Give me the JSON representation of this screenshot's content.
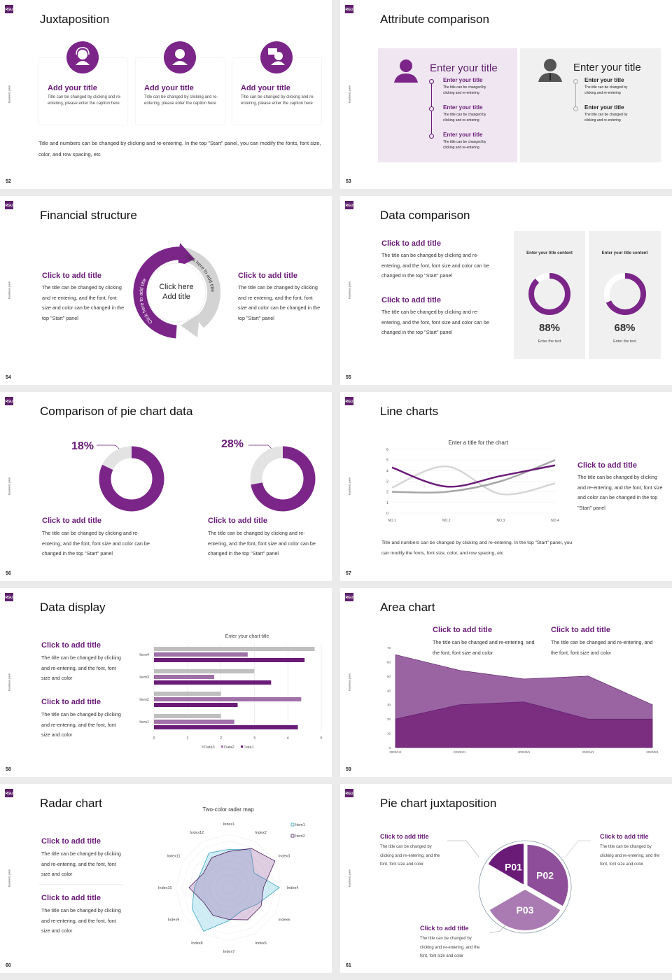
{
  "logo": "RGU",
  "side_label": "Business plan",
  "colors": {
    "purple": "#7b2589",
    "dark_purple": "#5e1f6b",
    "light_purple_bg": "#efe6f1",
    "gray_bg": "#f0f0f0",
    "light_gray": "#e3e3e3"
  },
  "slides": [
    {
      "page": "52",
      "title": "Juxtaposition",
      "cards": [
        {
          "icon": "headset-person-icon",
          "title": "Add your title",
          "text": "Title can be changed by clicking and re-entering, please enter the caption here"
        },
        {
          "icon": "person-icon",
          "title": "Add your title",
          "text": "Title can be changed by clicking and re-entering, please enter the caption here"
        },
        {
          "icon": "person-speech-icon",
          "title": "Add your title",
          "text": "Title can be changed by clicking and re-entering, please enter the caption here"
        }
      ],
      "footer": "Title and numbers can be changed by clicking and re-entering. In the top \"Start\" panel, you can modify the fonts, font size, color, and row spacing, etc"
    },
    {
      "page": "53",
      "title": "Attribute comparison",
      "panels": [
        {
          "heading": "Enter your title",
          "items": [
            {
              "title": "Enter your title",
              "text": "The title can be changed by clicking and re-entering"
            },
            {
              "title": "Enter your title",
              "text": "The title can be changed by clicking and re-entering"
            },
            {
              "title": "Enter your title",
              "text": "The title can be changed by clicking and re-entering"
            }
          ]
        },
        {
          "heading": "Enter your title",
          "items": [
            {
              "title": "Enter your title",
              "text": "The title can be changed by clicking and re-entering"
            },
            {
              "title": "Enter your title",
              "text": "The title can be changed by clicking and re-entering"
            }
          ]
        }
      ]
    },
    {
      "page": "54",
      "title": "Financial structure",
      "left": {
        "title": "Click to add title",
        "text": "The title can be changed by clicking and re-entering, and the font, font size and color can be changed in the top \"Start\" panel"
      },
      "right": {
        "title": "Click to add title",
        "text": "The title can be changed by clicking and re-entering, and the font, font size and color can be changed in the top \"Start\" panel"
      },
      "center": [
        "Click here",
        "Add title"
      ],
      "arc_left": "Click here to add title",
      "arc_right": "Click here to add title"
    },
    {
      "page": "55",
      "title": "Data comparison",
      "blocks": [
        {
          "title": "Click to add title",
          "text": "The title can be changed by clicking and re-entering, and the font, font size and color can be changed in the top \"Start\" panel"
        },
        {
          "title": "Click to add title",
          "text": "The title can be changed by clicking and re-entering, and the font, font size and color can be changed in the top \"Start\" panel"
        }
      ],
      "cards": [
        {
          "heading": "Enter your title content",
          "value": "88%",
          "caption": "Enter the text"
        },
        {
          "heading": "Enter your title content",
          "value": "68%",
          "caption": "Enter the text"
        }
      ]
    },
    {
      "page": "56",
      "title": "Comparison of pie chart data",
      "blocks": [
        {
          "label": "18%",
          "title": "Click to add title",
          "text": "The title can be changed by clicking and re-entering, and the font, font size and color can be changed in the top \"Start\" panel"
        },
        {
          "label": "28%",
          "title": "Click to add title",
          "text": "The title can be changed by clicking and re-entering, and the font, font size and color can be changed in the top \"Start\" panel"
        }
      ]
    },
    {
      "page": "57",
      "title": "Line charts",
      "right": {
        "title": "Click to add title",
        "text": "The title can be changed by clicking and re-entering, and the font, font size and color can be changed in the top \"Start\" panel"
      },
      "footer": "Title and numbers can be changed by clicking and re-entering. In the top \"Start\" panel, you can modify the fonts, font size, color, and row spacing, etc"
    },
    {
      "page": "58",
      "title": "Data display",
      "blocks": [
        {
          "title": "Click to add title",
          "text": "The title can be changed by clicking and re-entering, and the font, font size and color"
        },
        {
          "title": "Click to add title",
          "text": "The title can be changed by clicking and re-entering, and the font, font size and color"
        }
      ]
    },
    {
      "page": "59",
      "title": "Area chart",
      "blocks": [
        {
          "title": "Click to add title",
          "text": "The title can be changed and re-entering, and the font, font size and color"
        },
        {
          "title": "Click to add title",
          "text": "The title can be changed and re-entering, and the font, font size and color"
        }
      ]
    },
    {
      "page": "60",
      "title": "Radar chart",
      "blocks": [
        {
          "title": "Click to add title",
          "text": "The title can be changed by clicking and re-entering, and the font, font size and color"
        },
        {
          "title": "Click to add title",
          "text": "The title can be changed by clicking and re-entering, and the font, font size and color"
        }
      ]
    },
    {
      "page": "61",
      "title": "Pie chart juxtaposition",
      "blocks": [
        {
          "title": "Click to add title",
          "text": "The title can be changed by clicking and re-entering, and the font, font size and color"
        },
        {
          "title": "Click to add title",
          "text": "The title can be changed by clicking and re-entering, and the font, font size and color"
        },
        {
          "title": "Click to add title",
          "text": "The title can be changed by clicking and re-entering, and the font, font size and color"
        }
      ],
      "segments": [
        "P01",
        "P02",
        "P03"
      ]
    }
  ],
  "chart_data": [
    {
      "id": "donuts-55",
      "type": "pie",
      "values_percent": [
        88,
        68
      ]
    },
    {
      "id": "donuts-56",
      "type": "pie",
      "highlighted_percent": [
        18,
        28
      ]
    },
    {
      "id": "line-57",
      "type": "line",
      "title": "Enter a title for the chart",
      "categories": [
        "NO.1",
        "NO.2",
        "NO.3",
        "NO.4"
      ],
      "yticks": [
        "0",
        "1",
        "2",
        "3",
        "4",
        "5",
        "6"
      ],
      "ylim": [
        0,
        6
      ],
      "grid": true,
      "series": [
        {
          "values": [
            4.3,
            2.5,
            3.5,
            4.5
          ],
          "color": "#6a1b78"
        },
        {
          "values": [
            2.4,
            4.4,
            1.8,
            2.8
          ],
          "color": "#d6d6d6"
        },
        {
          "values": [
            2.0,
            2.0,
            3.0,
            5.0
          ],
          "color": "#a6a6a6"
        }
      ]
    },
    {
      "id": "bar-58",
      "type": "bar",
      "orientation": "horizontal",
      "title": "Enter your chart title",
      "categories": [
        "Item1",
        "Item2",
        "Item3",
        "Item4"
      ],
      "xticks": [
        "0",
        "1",
        "2",
        "3",
        "4",
        "5"
      ],
      "xlim": [
        0,
        5
      ],
      "legend": "bottom",
      "series": [
        {
          "name": "Data3",
          "values": [
            2,
            2,
            3,
            4.8
          ],
          "color": "#bfbfbf"
        },
        {
          "name": "Data2",
          "values": [
            2.4,
            4.4,
            1.8,
            2.8
          ],
          "color": "#a070a8"
        },
        {
          "name": "Data1",
          "values": [
            4.3,
            2.5,
            3.5,
            4.5
          ],
          "color": "#6a1b78"
        }
      ]
    },
    {
      "id": "area-59",
      "type": "area",
      "categories": [
        "2020/1/1",
        "2020/2/1",
        "2020/3/1",
        "2020/4/1",
        "2020/5/1"
      ],
      "yticks": [
        "0",
        "10",
        "20",
        "30",
        "40",
        "50",
        "60",
        "70"
      ],
      "ylim": [
        0,
        70
      ],
      "series": [
        {
          "values": [
            65,
            54,
            48,
            50,
            30
          ],
          "color": "#9a64a2"
        },
        {
          "values": [
            20,
            30,
            32,
            20,
            20
          ],
          "color": "#7b2d80"
        }
      ]
    },
    {
      "id": "radar-60",
      "type": "radar",
      "title": "Two-color radar map",
      "legend": "top-right",
      "axes": [
        "Index1",
        "Index2",
        "Index3",
        "Index4",
        "Index5",
        "Index6",
        "Index7",
        "Index8",
        "Index9",
        "Index10",
        "Index11",
        "Index12"
      ],
      "range": [
        0,
        100
      ],
      "series": [
        {
          "name": "Item1",
          "values": [
            72,
            82,
            55,
            95,
            62,
            50,
            62,
            95,
            80,
            65,
            60,
            75
          ],
          "color": "#3aa6c0"
        },
        {
          "name": "Item2",
          "values": [
            68,
            85,
            100,
            65,
            70,
            70,
            60,
            60,
            55,
            75,
            55,
            65
          ],
          "color": "#4a1a5a"
        }
      ]
    },
    {
      "id": "pie-61",
      "type": "pie",
      "labels": [
        "P01",
        "P02",
        "P03"
      ],
      "values": [
        1,
        1,
        1
      ],
      "colors": [
        "#6a1b78",
        "#8e4e99",
        "#a97bb2"
      ]
    }
  ]
}
